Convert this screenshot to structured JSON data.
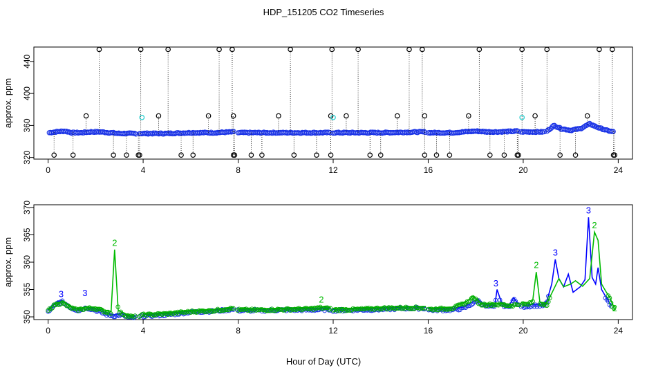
{
  "chart_data": [
    {
      "type": "scatter",
      "title": "HDP_151205  CO2 Timeseries",
      "xlabel": "",
      "ylabel": "approx. ppm",
      "xlim": [
        -0.6,
        24.6
      ],
      "ylim": [
        318,
        458
      ],
      "x_ticks": [
        0,
        4,
        8,
        12,
        16,
        20,
        24
      ],
      "y_ticks": [
        320,
        360,
        400,
        440
      ],
      "baseline_runs": [
        {
          "x0": 0.05,
          "x1": 3.7,
          "pts": [
            [
              0.05,
              351
            ],
            [
              0.3,
              352
            ],
            [
              0.7,
              353
            ],
            [
              1.0,
              351
            ],
            [
              1.4,
              351
            ],
            [
              1.8,
              352
            ],
            [
              2.2,
              352
            ],
            [
              2.6,
              351
            ],
            [
              3.0,
              350
            ],
            [
              3.4,
              350
            ],
            [
              3.7,
              350
            ]
          ]
        },
        {
          "x0": 3.85,
          "x1": 7.85,
          "pts": [
            [
              3.85,
              350
            ],
            [
              5.0,
              350
            ],
            [
              6.0,
              351
            ],
            [
              7.0,
              351
            ],
            [
              7.85,
              352
            ]
          ]
        },
        {
          "x0": 8.0,
          "x1": 11.9,
          "pts": [
            [
              8.0,
              351
            ],
            [
              10.0,
              351
            ],
            [
              11.9,
              351
            ]
          ]
        },
        {
          "x0": 12.0,
          "x1": 15.9,
          "pts": [
            [
              12.0,
              351
            ],
            [
              14.0,
              351
            ],
            [
              15.9,
              352
            ]
          ]
        },
        {
          "x0": 16.0,
          "x1": 19.8,
          "pts": [
            [
              16.0,
              351
            ],
            [
              17.0,
              351
            ],
            [
              17.5,
              352
            ],
            [
              18.0,
              353
            ],
            [
              18.5,
              352
            ],
            [
              19.0,
              352
            ],
            [
              19.8,
              353
            ]
          ]
        },
        {
          "x0": 19.9,
          "x1": 20.9,
          "pts": [
            [
              19.9,
              352
            ],
            [
              20.9,
              352
            ]
          ]
        },
        {
          "x0": 21.0,
          "x1": 23.8,
          "pts": [
            [
              21.0,
              353
            ],
            [
              21.3,
              360
            ],
            [
              21.6,
              356
            ],
            [
              22.0,
              354
            ],
            [
              22.4,
              356
            ],
            [
              22.8,
              362
            ],
            [
              23.1,
              358
            ],
            [
              23.5,
              354
            ],
            [
              23.8,
              352
            ]
          ]
        }
      ],
      "outliers_high": [
        2.15,
        3.9,
        5.05,
        7.2,
        7.75,
        10.2,
        11.95,
        13.05,
        15.2,
        15.75,
        18.15,
        19.95,
        21.0,
        23.2,
        23.75
      ],
      "outliers_low": [
        0.25,
        1.05,
        2.75,
        3.3,
        3.8,
        3.85,
        5.6,
        6.1,
        7.8,
        7.85,
        8.55,
        9.0,
        10.35,
        11.3,
        11.9,
        13.55,
        14.0,
        15.85,
        16.35,
        16.9,
        18.6,
        19.2,
        19.75,
        19.8,
        21.55,
        22.2,
        23.8,
        23.85
      ],
      "outliers_mid": [
        1.6,
        4.65,
        6.75,
        7.8,
        9.7,
        11.9,
        12.55,
        14.7,
        15.85,
        17.7,
        20.5,
        22.7
      ],
      "outliers_cyan": [
        3.95,
        12.0,
        19.95
      ],
      "outlier_values": {
        "high": 455,
        "low": 323,
        "mid": 372,
        "cyan": 370
      }
    },
    {
      "type": "line",
      "title": "",
      "xlabel": "Hour of Day (UTC)",
      "ylabel": "approx. ppm",
      "xlim": [
        -0.6,
        24.6
      ],
      "ylim": [
        349.5,
        370.5
      ],
      "x_ticks": [
        0,
        4,
        8,
        12,
        16,
        20,
        24
      ],
      "y_ticks": [
        350,
        355,
        360,
        365,
        370
      ],
      "series": [
        {
          "name": "3",
          "color": "#0000ff",
          "points": [
            [
              0,
              351.2
            ],
            [
              0.2,
              352
            ],
            [
              0.4,
              352.8
            ],
            [
              0.6,
              353
            ],
            [
              0.8,
              352.4
            ],
            [
              1.0,
              351.8
            ],
            [
              1.3,
              351.4
            ],
            [
              1.6,
              351.9
            ],
            [
              1.9,
              351.6
            ],
            [
              2.2,
              351.1
            ],
            [
              2.5,
              350.6
            ],
            [
              2.8,
              350.4
            ],
            [
              3.1,
              350.6
            ],
            [
              3.4,
              350.1
            ],
            [
              3.7,
              350.1
            ],
            [
              4.0,
              350.4
            ],
            [
              5.0,
              350.6
            ],
            [
              6.0,
              351.1
            ],
            [
              7.0,
              351.3
            ],
            [
              7.8,
              351.6
            ],
            [
              8.0,
              351.4
            ],
            [
              9.0,
              351.4
            ],
            [
              10.0,
              351.5
            ],
            [
              11.0,
              351.5
            ],
            [
              11.9,
              351.6
            ],
            [
              12.0,
              351.4
            ],
            [
              13.0,
              351.5
            ],
            [
              14.0,
              351.6
            ],
            [
              15.0,
              351.8
            ],
            [
              15.9,
              351.8
            ],
            [
              16.0,
              351.5
            ],
            [
              17.0,
              351.5
            ],
            [
              17.5,
              351.8
            ],
            [
              17.8,
              352.5
            ],
            [
              18.1,
              353.2
            ],
            [
              18.4,
              352.2
            ],
            [
              18.8,
              352
            ],
            [
              18.9,
              355
            ],
            [
              19.1,
              352.4
            ],
            [
              19.4,
              352
            ],
            [
              19.6,
              353.5
            ],
            [
              19.8,
              352.3
            ],
            [
              20.0,
              352.1
            ],
            [
              20.5,
              352.3
            ],
            [
              20.9,
              352.3
            ],
            [
              21.0,
              353
            ],
            [
              21.2,
              356
            ],
            [
              21.35,
              360.5
            ],
            [
              21.5,
              357
            ],
            [
              21.7,
              355.5
            ],
            [
              21.9,
              357.8
            ],
            [
              22.1,
              354.5
            ],
            [
              22.4,
              355.5
            ],
            [
              22.6,
              356.8
            ],
            [
              22.75,
              368.2
            ],
            [
              22.9,
              357.2
            ],
            [
              23.05,
              356
            ],
            [
              23.15,
              359
            ],
            [
              23.3,
              355
            ],
            [
              23.5,
              353.5
            ],
            [
              23.7,
              352
            ]
          ],
          "labels": [
            [
              0.55,
              353.6
            ],
            [
              1.55,
              353.8
            ],
            [
              18.85,
              355.6
            ],
            [
              21.35,
              361.2
            ],
            [
              22.75,
              368.9
            ]
          ]
        },
        {
          "name": "2",
          "color": "#00bb00",
          "points": [
            [
              0,
              351.4
            ],
            [
              0.3,
              352.5
            ],
            [
              0.6,
              352.8
            ],
            [
              0.9,
              352
            ],
            [
              1.2,
              351.5
            ],
            [
              1.6,
              351.8
            ],
            [
              2.0,
              351.8
            ],
            [
              2.4,
              351.2
            ],
            [
              2.65,
              351
            ],
            [
              2.8,
              362.3
            ],
            [
              2.95,
              351.2
            ],
            [
              3.3,
              350.5
            ],
            [
              3.6,
              350.2
            ],
            [
              4.0,
              350.6
            ],
            [
              5.0,
              350.8
            ],
            [
              6.0,
              351.2
            ],
            [
              7.0,
              351.4
            ],
            [
              7.8,
              351.8
            ],
            [
              8.0,
              351.5
            ],
            [
              9.0,
              351.5
            ],
            [
              10.0,
              351.6
            ],
            [
              11.0,
              351.7
            ],
            [
              11.5,
              351.9
            ],
            [
              11.9,
              351.7
            ],
            [
              12.0,
              351.5
            ],
            [
              13.0,
              351.6
            ],
            [
              14.0,
              351.8
            ],
            [
              15.0,
              351.9
            ],
            [
              15.9,
              351.9
            ],
            [
              16.0,
              351.6
            ],
            [
              17.0,
              351.8
            ],
            [
              17.6,
              352.8
            ],
            [
              17.9,
              353.8
            ],
            [
              18.2,
              352.5
            ],
            [
              18.6,
              352.5
            ],
            [
              19.0,
              352.5
            ],
            [
              19.5,
              352.3
            ],
            [
              19.9,
              352.6
            ],
            [
              20.2,
              352.5
            ],
            [
              20.4,
              353
            ],
            [
              20.55,
              358.2
            ],
            [
              20.7,
              352.7
            ],
            [
              21.0,
              352.5
            ],
            [
              21.5,
              357
            ],
            [
              21.7,
              355.5
            ],
            [
              22.0,
              356
            ],
            [
              22.2,
              356.6
            ],
            [
              22.5,
              355.6
            ],
            [
              22.8,
              357
            ],
            [
              23.0,
              365.5
            ],
            [
              23.15,
              364
            ],
            [
              23.3,
              356
            ],
            [
              23.5,
              354.5
            ],
            [
              23.65,
              353.5
            ],
            [
              23.85,
              351.3
            ]
          ],
          "labels": [
            [
              2.8,
              363
            ],
            [
              11.5,
              352.6
            ],
            [
              20.55,
              358.9
            ],
            [
              23.0,
              366.2
            ],
            [
              23.85,
              351.0
            ]
          ]
        }
      ]
    }
  ]
}
